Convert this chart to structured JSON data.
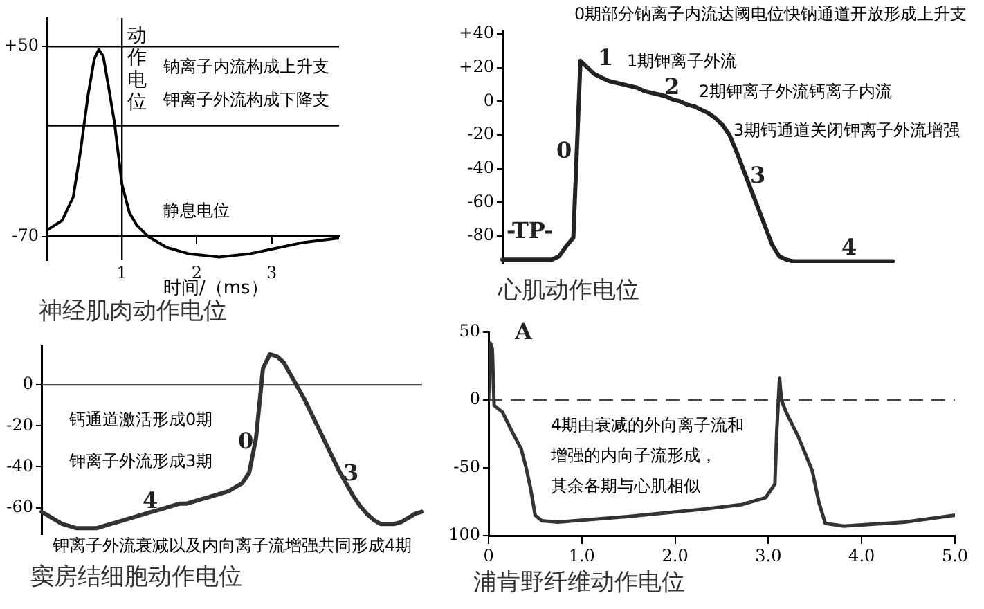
{
  "chart_data": [
    {
      "type": "line",
      "title": "神经肌肉动作电位",
      "xlabel": "时间/（ms）",
      "marker": "none",
      "x": [
        0,
        0.2,
        0.35,
        0.45,
        0.55,
        0.63,
        0.69,
        0.75,
        0.82,
        0.9,
        1.0,
        1.1,
        1.2,
        1.35,
        1.6,
        1.9,
        2.3,
        2.7,
        3.0,
        3.4,
        3.9
      ],
      "series": [
        {
          "color": "#000000",
          "values": [
            -66,
            -60,
            -45,
            -15,
            20,
            42,
            48,
            44,
            25,
            2,
            -37,
            -55,
            -63,
            -70,
            -77,
            -81,
            -83,
            -81,
            -78,
            -74,
            -71
          ]
        }
      ],
      "xlim": [
        0,
        3.9
      ],
      "ylim": [
        -85,
        68
      ],
      "xticks": [
        1,
        2,
        3
      ],
      "yticks": [
        {
          "value": 50,
          "label": "+50"
        },
        {
          "value": -70,
          "label": "-70"
        }
      ],
      "ref_lines": [
        {
          "axis": "y",
          "value": 50,
          "color": "#000000"
        },
        {
          "axis": "y",
          "value": 0,
          "color": "#000000"
        },
        {
          "axis": "x",
          "value": 1,
          "color": "#000000"
        }
      ],
      "annotations": [
        "动作电位",
        "钠离子内流构成上升支",
        "钾离子外流构成下降支",
        "静息电位"
      ]
    },
    {
      "type": "line",
      "title": "心肌动作电位",
      "marker": "none",
      "tick_labels": "y",
      "categories": [
        null,
        null,
        null,
        null,
        null,
        null,
        null,
        null,
        null,
        null,
        null,
        null,
        null,
        null,
        null,
        null,
        null,
        null,
        null,
        null,
        null,
        null,
        null,
        null,
        null,
        null,
        null,
        null,
        null,
        null,
        null,
        null,
        null,
        null,
        null,
        null,
        null,
        null,
        null,
        null,
        null,
        null,
        null,
        null,
        null,
        null,
        null,
        null,
        null,
        null,
        null,
        null,
        null,
        null,
        null,
        null
      ],
      "series": [
        {
          "color": "#222222",
          "values": [
            -94,
            -94,
            -94,
            -94,
            -94,
            -94,
            -94,
            -94,
            -92,
            -86,
            -81,
            24,
            20,
            16,
            14,
            12,
            11,
            10,
            9,
            8,
            6,
            5,
            4,
            3,
            1,
            0,
            -2,
            -3,
            -5,
            -7,
            -10,
            -14,
            -20,
            -30,
            -41,
            -52,
            -63,
            -74,
            -85,
            -92,
            -94,
            -95,
            -95,
            -95,
            -95,
            -95,
            -95,
            -95,
            -95,
            -95,
            -95,
            -95,
            -95,
            -95,
            -95,
            -95
          ]
        }
      ],
      "ylim": [
        -96,
        42
      ],
      "yticks": [
        {
          "value": 40,
          "label": "+40"
        },
        {
          "value": 20,
          "label": "+20"
        },
        0,
        -20,
        -40,
        -60,
        -80
      ],
      "annotations": [
        "0期部分钠离子内流达阈电位快钠通道开放形成上升支",
        "1期钾离子外流",
        "2期钾离子外流钙离子内流",
        "3期钙通道关闭钾离子外流增强",
        "0",
        "1",
        "2",
        "3",
        "4",
        "-TP-"
      ]
    },
    {
      "type": "line",
      "title": "窦房结细胞动作电位",
      "marker": "none",
      "tick_labels": "y",
      "categories": [
        null,
        null,
        null,
        null,
        null,
        null,
        null,
        null,
        null,
        null,
        null,
        null,
        null,
        null,
        null,
        null,
        null,
        null,
        null,
        null,
        null,
        null,
        null,
        null,
        null,
        null,
        null,
        null,
        null,
        null,
        null,
        null,
        null,
        null,
        null,
        null,
        null,
        null,
        null,
        null,
        null,
        null,
        null,
        null,
        null,
        null,
        null,
        null,
        null,
        null,
        null,
        null,
        null,
        null,
        null,
        null
      ],
      "series": [
        {
          "color": "#333333",
          "values": [
            -62,
            -64,
            -66,
            -68,
            -69,
            -70,
            -70,
            -70,
            -70,
            -69,
            -68,
            -67,
            -66,
            -65,
            -64,
            -63,
            -62,
            -61,
            -60,
            -59,
            -58,
            -58,
            -57,
            -56,
            -55,
            -54,
            -53,
            -52,
            -50,
            -48,
            -43,
            -26,
            8,
            15,
            14,
            11,
            5,
            -1,
            -7,
            -14,
            -21,
            -28,
            -35,
            -42,
            -48,
            -54,
            -59,
            -63,
            -66,
            -68,
            -68,
            -68,
            -67,
            -65,
            -63,
            -62
          ]
        }
      ],
      "ylim": [
        -73,
        19
      ],
      "yticks": [
        0,
        -20,
        -40,
        -60
      ],
      "ref_lines": [
        {
          "axis": "y",
          "value": 0,
          "color": "#555555"
        }
      ],
      "annotations": [
        "钙通道激活形成0期",
        "钾离子外流形成3期",
        "钾离子外流衰减以及内向离子流增强共同形成4期",
        "0",
        "4",
        "3"
      ]
    },
    {
      "type": "line",
      "title": "浦肯野纤维动作电位",
      "marker": "none",
      "x": [
        0,
        0.02,
        0.04,
        0.06,
        0.15,
        0.25,
        0.35,
        0.4,
        0.45,
        0.5,
        0.57,
        0.74,
        1.49,
        2.23,
        2.72,
        2.97,
        3.07,
        3.09,
        3.12,
        3.14,
        3.19,
        3.32,
        3.47,
        3.54,
        3.61,
        3.81,
        4.46,
        5.0
      ],
      "series": [
        {
          "color": "#333333",
          "values": [
            0,
            42,
            38,
            -4,
            -9,
            -23,
            -36,
            -49,
            -65,
            -85,
            -89,
            -90,
            -86,
            -81,
            -77,
            -72,
            -62,
            -23,
            16,
            0,
            -9,
            -27,
            -52,
            -75,
            -91,
            -93,
            -90,
            -85
          ]
        }
      ],
      "xlim": [
        0,
        5
      ],
      "ylim": [
        -100,
        50
      ],
      "xticks": [
        0,
        {
          "value": 1,
          "label": "1.0"
        },
        {
          "value": 2,
          "label": "2.0"
        },
        {
          "value": 3,
          "label": "3.0"
        },
        {
          "value": 4,
          "label": "4.0"
        },
        {
          "value": 5,
          "label": "5.0"
        }
      ],
      "yticks": [
        50,
        0,
        -50,
        {
          "value": -100,
          "label": "100"
        }
      ],
      "ref_lines": [
        {
          "axis": "y",
          "value": 0,
          "color": "#444444",
          "line_style": "dashed"
        }
      ],
      "annotations": [
        "A",
        "4期由衰减的外向离子流和",
        "增强的内向子流形成，",
        "其余各期与心肌相似"
      ]
    }
  ]
}
